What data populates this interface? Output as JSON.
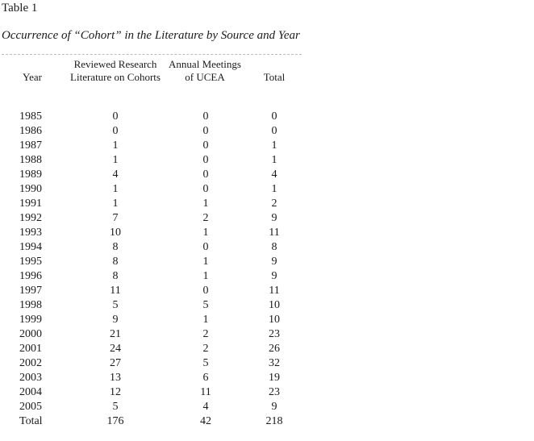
{
  "table": {
    "label": "Table 1",
    "title": "Occurrence of “Cohort” in the Literature by Source and Year",
    "headers": {
      "year": "Year",
      "research_line1": "Reviewed Research",
      "research_line2": "Literature on Cohorts",
      "ucea_line1": "Annual Meetings",
      "ucea_line2": "of UCEA",
      "total": "Total"
    },
    "rows": [
      {
        "year": "1985",
        "research": "0",
        "ucea": "0",
        "total": "0"
      },
      {
        "year": "1986",
        "research": "0",
        "ucea": "0",
        "total": "0"
      },
      {
        "year": "1987",
        "research": "1",
        "ucea": "0",
        "total": "1"
      },
      {
        "year": "1988",
        "research": "1",
        "ucea": "0",
        "total": "1"
      },
      {
        "year": "1989",
        "research": "4",
        "ucea": "0",
        "total": "4"
      },
      {
        "year": "1990",
        "research": "1",
        "ucea": "0",
        "total": "1"
      },
      {
        "year": "1991",
        "research": "1",
        "ucea": "1",
        "total": "2"
      },
      {
        "year": "1992",
        "research": "7",
        "ucea": "2",
        "total": "9"
      },
      {
        "year": "1993",
        "research": "10",
        "ucea": "1",
        "total": "11"
      },
      {
        "year": "1994",
        "research": "8",
        "ucea": "0",
        "total": "8"
      },
      {
        "year": "1995",
        "research": "8",
        "ucea": "1",
        "total": "9"
      },
      {
        "year": "1996",
        "research": "8",
        "ucea": "1",
        "total": "9"
      },
      {
        "year": "1997",
        "research": "11",
        "ucea": "0",
        "total": "11"
      },
      {
        "year": "1998",
        "research": "5",
        "ucea": "5",
        "total": "10"
      },
      {
        "year": "1999",
        "research": "9",
        "ucea": "1",
        "total": "10"
      },
      {
        "year": "2000",
        "research": "21",
        "ucea": "2",
        "total": "23"
      },
      {
        "year": "2001",
        "research": "24",
        "ucea": "2",
        "total": "26"
      },
      {
        "year": "2002",
        "research": "27",
        "ucea": "5",
        "total": "32"
      },
      {
        "year": "2003",
        "research": "13",
        "ucea": "6",
        "total": "19"
      },
      {
        "year": "2004",
        "research": "12",
        "ucea": "11",
        "total": "23"
      },
      {
        "year": "2005",
        "research": "5",
        "ucea": "4",
        "total": "9"
      },
      {
        "year": "Total",
        "research": "176",
        "ucea": "42",
        "total": "218"
      }
    ]
  }
}
